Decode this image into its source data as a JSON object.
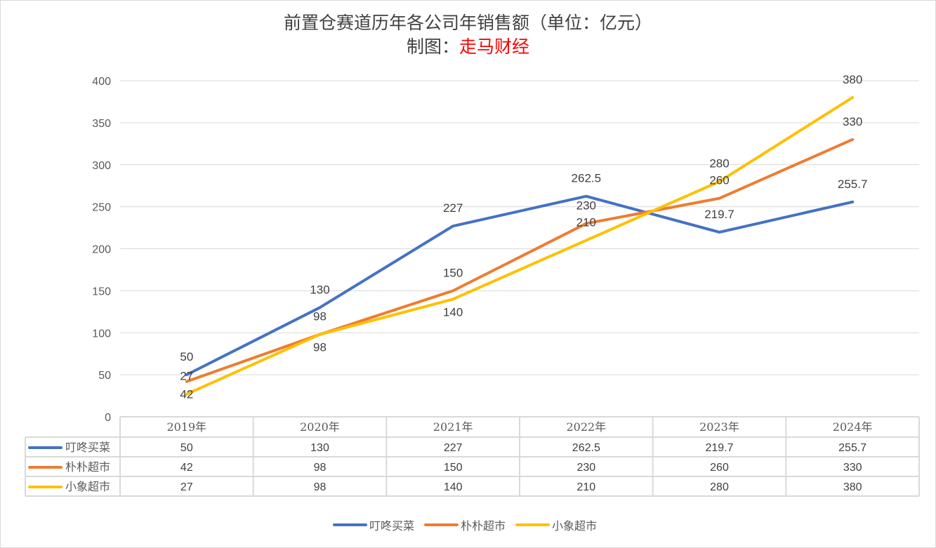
{
  "chart_data": {
    "type": "line",
    "title": "前置仓赛道历年各公司年销售额（单位：亿元）",
    "subtitle_prefix": "制图：",
    "subtitle_source": "走马财经",
    "categories": [
      "2019年",
      "2020年",
      "2021年",
      "2022年",
      "2023年",
      "2024年"
    ],
    "series": [
      {
        "name": "叮咚买菜",
        "color": "#4472c4",
        "values": [
          50,
          130,
          227,
          262.5,
          219.7,
          255.7
        ]
      },
      {
        "name": "朴朴超市",
        "color": "#ed7d31",
        "values": [
          42,
          98,
          150,
          230,
          260,
          330
        ]
      },
      {
        "name": "小象超市",
        "color": "#ffc000",
        "values": [
          27,
          98,
          140,
          210,
          280,
          380
        ]
      }
    ],
    "ylim": [
      0,
      400
    ],
    "yticks": [
      0,
      50,
      100,
      150,
      200,
      250,
      300,
      350,
      400
    ],
    "grid": true,
    "data_table": true,
    "legend": "bottom"
  }
}
